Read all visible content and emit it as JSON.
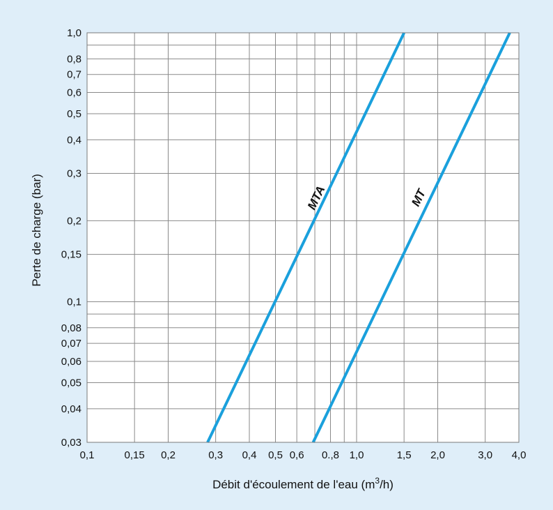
{
  "chart_data": {
    "type": "line",
    "xlabel": "Débit d'écoulement de l'eau (m",
    "xlabel_sup": "3",
    "xlabel_end": "/h)",
    "ylabel": "Perte de charge (bar)",
    "x_scale": "log",
    "y_scale": "log",
    "xlim": [
      0.1,
      4.0
    ],
    "ylim": [
      0.03,
      1.0
    ],
    "grid": true,
    "background_color": "#dfeef9",
    "plot_background_color": "#ffffff",
    "line_color": "#1aa0dc",
    "x_ticks": [
      {
        "value": 0.1,
        "label": "0,1"
      },
      {
        "value": 0.15,
        "label": "0,15"
      },
      {
        "value": 0.2,
        "label": "0,2"
      },
      {
        "value": 0.3,
        "label": "0,3"
      },
      {
        "value": 0.4,
        "label": "0,4"
      },
      {
        "value": 0.5,
        "label": "0,5"
      },
      {
        "value": 0.6,
        "label": "0,6"
      },
      {
        "value": 0.8,
        "label": "0.,8"
      },
      {
        "value": 1.0,
        "label": "1,0"
      },
      {
        "value": 1.5,
        "label": "1,5"
      },
      {
        "value": 2.0,
        "label": "2,0"
      },
      {
        "value": 3.0,
        "label": "3,0"
      },
      {
        "value": 4.0,
        "label": "4,0"
      }
    ],
    "x_minor_grid": [
      0.7,
      0.9
    ],
    "y_ticks": [
      {
        "value": 0.03,
        "label": "0,03"
      },
      {
        "value": 0.04,
        "label": "0,04"
      },
      {
        "value": 0.05,
        "label": "0,05"
      },
      {
        "value": 0.06,
        "label": "0,06"
      },
      {
        "value": 0.07,
        "label": "0,07"
      },
      {
        "value": 0.08,
        "label": "0,08"
      },
      {
        "value": 0.1,
        "label": "0,1"
      },
      {
        "value": 0.15,
        "label": "0,15"
      },
      {
        "value": 0.2,
        "label": "0,2"
      },
      {
        "value": 0.3,
        "label": "0,3"
      },
      {
        "value": 0.4,
        "label": "0,4"
      },
      {
        "value": 0.5,
        "label": "0,5"
      },
      {
        "value": 0.6,
        "label": "0,6"
      },
      {
        "value": 0.7,
        "label": "0,7"
      },
      {
        "value": 0.8,
        "label": "0,8"
      },
      {
        "value": 1.0,
        "label": "1,0"
      }
    ],
    "y_minor_grid": [
      0.09,
      0.9
    ],
    "series": [
      {
        "name": "MTA",
        "x": [
          0.28,
          1.5
        ],
        "y": [
          0.03,
          1.0
        ],
        "label_at": [
          0.73,
          0.24
        ]
      },
      {
        "name": "MT",
        "x": [
          0.69,
          3.7
        ],
        "y": [
          0.03,
          1.0
        ],
        "label_at": [
          1.75,
          0.24
        ]
      }
    ]
  }
}
